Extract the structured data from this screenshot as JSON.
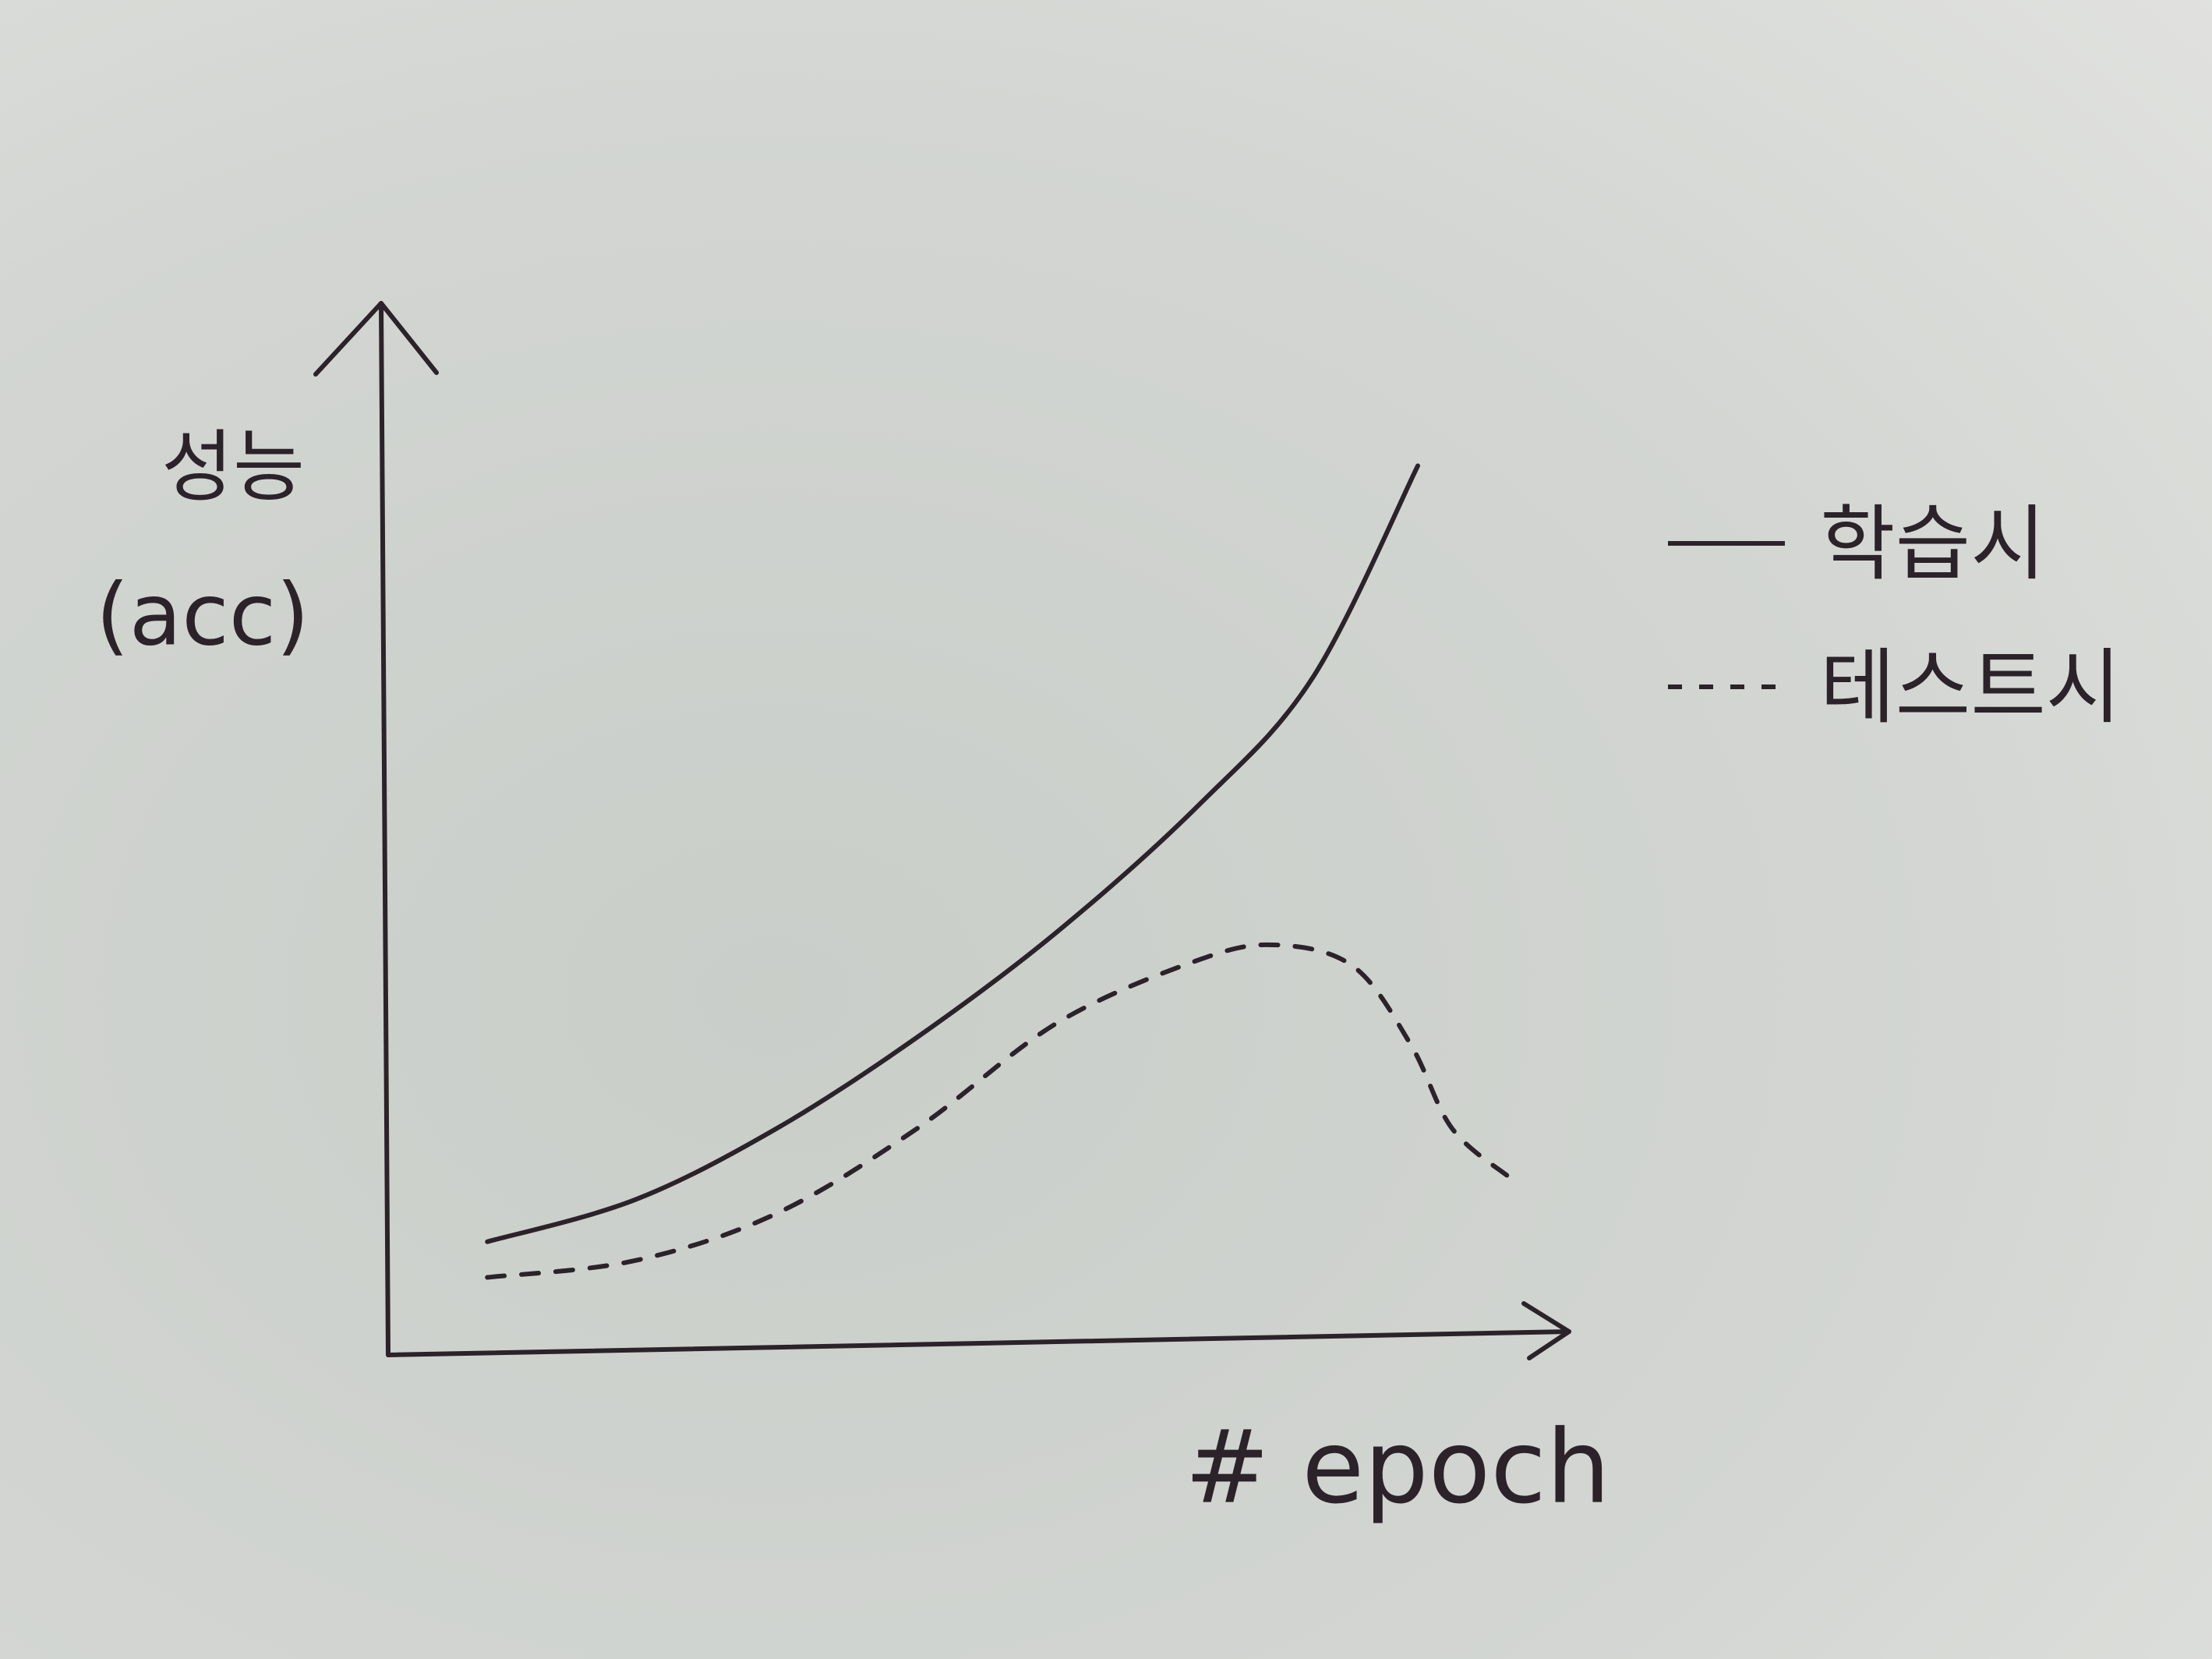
{
  "chart_data": {
    "type": "line",
    "ylabel": [
      "성능",
      "(acc)"
    ],
    "xlabel": "# epoch",
    "xlim": [
      0,
      100
    ],
    "ylim": [
      0,
      100
    ],
    "legend": "right",
    "series": [
      {
        "name": "학습시",
        "color": "#2b2329",
        "line_style": "solid",
        "x": [
          8.4,
          20.9,
          32.9,
          44.8,
          56.7,
          68.7,
          78.3,
          87.2
        ],
        "values": [
          10.5,
          14.5,
          21.3,
          30.0,
          40.1,
          52.2,
          64.3,
          84.5
        ]
      },
      {
        "name": "테스트시",
        "color": "#2b2329",
        "line_style": "dashed",
        "x": [
          8.4,
          20.9,
          32.9,
          44.8,
          56.7,
          68.7,
          75.3,
          81.8,
          86.6,
          90.1,
          95.0
        ],
        "values": [
          7.1,
          8.7,
          13.2,
          21.3,
          31.4,
          37.4,
          38.8,
          36.7,
          29.3,
          21.3,
          16.6
        ]
      }
    ]
  }
}
